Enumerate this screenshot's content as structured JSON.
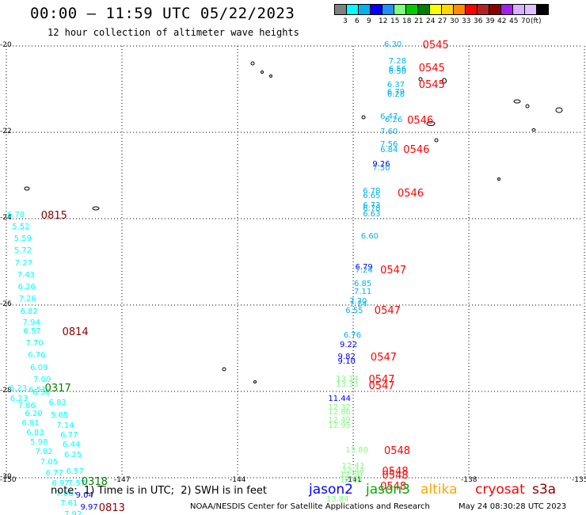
{
  "header": {
    "title": "00:00 – 11:59 UTC 05/22/2023",
    "subtitle": "12 hour collection of altimeter wave heights"
  },
  "color_scale": {
    "colors": [
      "#808080",
      "#00ffff",
      "#00b2ee",
      "#0000ff",
      "#1e90ff",
      "#7fff7f",
      "#00cd00",
      "#008000",
      "#ffff00",
      "#ffd700",
      "#ff8c00",
      "#ff0000",
      "#b22222",
      "#8b0000",
      "#a020f0",
      "#d8b0ff",
      "#e0c0ff",
      "#000000"
    ],
    "labels": [
      "3",
      "6",
      "9",
      "12",
      "15",
      "18",
      "21",
      "24",
      "27",
      "30",
      "33",
      "36",
      "39",
      "42",
      "45",
      "70",
      "(ft)"
    ]
  },
  "axes": {
    "lat_labels": [
      "-20",
      "-22",
      "-24",
      "-26",
      "-28",
      "-30"
    ],
    "lon_labels": [
      "-150",
      "-147",
      "-144",
      "-141",
      "-138",
      "-135"
    ]
  },
  "observations": [
    {
      "t": "6.30",
      "c": "#00b2ee",
      "lat": -19.98,
      "lon": -140.2
    },
    {
      "t": "7.28",
      "c": "#00b2ee",
      "lat": -20.37,
      "lon": -140.08
    },
    {
      "t": "6.56",
      "c": "#00b2ee",
      "lat": -20.55,
      "lon": -140.08
    },
    {
      "t": "6.50",
      "c": "#00b2ee",
      "lat": -20.6,
      "lon": -140.08
    },
    {
      "t": "6.37",
      "c": "#00b2ee",
      "lat": -20.92,
      "lon": -140.12
    },
    {
      "t": "6.79",
      "c": "#00b2ee",
      "lat": -21.08,
      "lon": -140.12
    },
    {
      "t": "6.28",
      "c": "#00b2ee",
      "lat": -21.13,
      "lon": -140.12
    },
    {
      "t": "6.47",
      "c": "#00b2ee",
      "lat": -21.65,
      "lon": -140.3
    },
    {
      "t": "6.26",
      "c": "#00b2ee",
      "lat": -21.73,
      "lon": -140.18
    },
    {
      "t": "7.60",
      "c": "#00b2ee",
      "lat": -22.0,
      "lon": -140.3
    },
    {
      "t": "7.56",
      "c": "#00b2ee",
      "lat": -22.3,
      "lon": -140.3
    },
    {
      "t": "6.84",
      "c": "#00b2ee",
      "lat": -22.42,
      "lon": -140.3
    },
    {
      "t": "9.26",
      "c": "#0000ff",
      "lat": -22.76,
      "lon": -140.5
    },
    {
      "t": "7.50",
      "c": "#00b2ee",
      "lat": -22.84,
      "lon": -140.5
    },
    {
      "t": "6.78",
      "c": "#00b2ee",
      "lat": -23.38,
      "lon": -140.75
    },
    {
      "t": "6.65",
      "c": "#00b2ee",
      "lat": -23.48,
      "lon": -140.75
    },
    {
      "t": "6.73",
      "c": "#00b2ee",
      "lat": -23.7,
      "lon": -140.75
    },
    {
      "t": "6.78",
      "c": "#00b2ee",
      "lat": -23.78,
      "lon": -140.75
    },
    {
      "t": "6.63",
      "c": "#00b2ee",
      "lat": -23.9,
      "lon": -140.75
    },
    {
      "t": "6.60",
      "c": "#00b2ee",
      "lat": -24.42,
      "lon": -140.8
    },
    {
      "t": "6.79",
      "c": "#0000ff",
      "lat": -25.14,
      "lon": -140.95
    },
    {
      "t": "7.24",
      "c": "#00b2ee",
      "lat": -25.22,
      "lon": -140.95
    },
    {
      "t": "6.85",
      "c": "#00b2ee",
      "lat": -25.52,
      "lon": -140.98
    },
    {
      "t": "7.11",
      "c": "#00b2ee",
      "lat": -25.7,
      "lon": -140.98
    },
    {
      "t": "7.30",
      "c": "#00b2ee",
      "lat": -25.92,
      "lon": -141.1
    },
    {
      "t": "7.14",
      "c": "#00b2ee",
      "lat": -26.0,
      "lon": -141.1
    },
    {
      "t": "6.55",
      "c": "#00b2ee",
      "lat": -26.15,
      "lon": -141.2
    },
    {
      "t": "6.76",
      "c": "#00b2ee",
      "lat": -26.72,
      "lon": -141.25
    },
    {
      "t": "9.22",
      "c": "#0000ff",
      "lat": -26.93,
      "lon": -141.35
    },
    {
      "t": "9.82",
      "c": "#0000ff",
      "lat": -27.22,
      "lon": -141.4
    },
    {
      "t": "9.10",
      "c": "#0000ff",
      "lat": -27.32,
      "lon": -141.4
    },
    {
      "t": "13.14",
      "c": "#7fff7f",
      "lat": -27.73,
      "lon": -141.45
    },
    {
      "t": "13.33",
      "c": "#7fff7f",
      "lat": -27.85,
      "lon": -141.45
    },
    {
      "t": "11.44",
      "c": "#0000ff",
      "lat": -28.18,
      "lon": -141.65
    },
    {
      "t": "12.32",
      "c": "#7fff7f",
      "lat": -28.38,
      "lon": -141.65
    },
    {
      "t": "12.86",
      "c": "#7fff7f",
      "lat": -28.5,
      "lon": -141.65
    },
    {
      "t": "12.49",
      "c": "#7fff7f",
      "lat": -28.68,
      "lon": -141.65
    },
    {
      "t": "12.95",
      "c": "#7fff7f",
      "lat": -28.8,
      "lon": -141.65
    },
    {
      "t": "13.80",
      "c": "#7fff7f",
      "lat": -29.38,
      "lon": -141.2
    },
    {
      "t": "12.43",
      "c": "#7fff7f",
      "lat": -29.75,
      "lon": -141.3
    },
    {
      "t": "12.44",
      "c": "#7fff7f",
      "lat": -29.85,
      "lon": -141.3
    },
    {
      "t": "12.50",
      "c": "#7fff7f",
      "lat": -29.95,
      "lon": -141.35
    },
    {
      "t": "12.08",
      "c": "#7fff7f",
      "lat": -30.07,
      "lon": -141.35
    },
    {
      "t": "13.84",
      "c": "#7fff7f",
      "lat": -30.52,
      "lon": -141.7
    },
    {
      "t": "6.78",
      "c": "#00ffff",
      "lat": -23.92,
      "lon": -149.98
    },
    {
      "t": "5.52",
      "c": "#00ffff",
      "lat": -24.2,
      "lon": -149.85
    },
    {
      "t": "5.59",
      "c": "#00ffff",
      "lat": -24.48,
      "lon": -149.8
    },
    {
      "t": "5.72",
      "c": "#00ffff",
      "lat": -24.76,
      "lon": -149.8
    },
    {
      "t": "7.27",
      "c": "#00ffff",
      "lat": -25.04,
      "lon": -149.78
    },
    {
      "t": "7.43",
      "c": "#00ffff",
      "lat": -25.32,
      "lon": -149.72
    },
    {
      "t": "6.26",
      "c": "#00ffff",
      "lat": -25.6,
      "lon": -149.7
    },
    {
      "t": "7.26",
      "c": "#00ffff",
      "lat": -25.88,
      "lon": -149.68
    },
    {
      "t": "6.82",
      "c": "#00ffff",
      "lat": -26.16,
      "lon": -149.64
    },
    {
      "t": "7.94",
      "c": "#00ffff",
      "lat": -26.42,
      "lon": -149.58
    },
    {
      "t": "6.57",
      "c": "#00ffff",
      "lat": -26.62,
      "lon": -149.56
    },
    {
      "t": "7.70",
      "c": "#00ffff",
      "lat": -26.9,
      "lon": -149.5
    },
    {
      "t": "6.76",
      "c": "#00ffff",
      "lat": -27.18,
      "lon": -149.44
    },
    {
      "t": "6.09",
      "c": "#00ffff",
      "lat": -27.46,
      "lon": -149.38
    },
    {
      "t": "7.00",
      "c": "#00ffff",
      "lat": -27.74,
      "lon": -149.3
    },
    {
      "t": "6.23",
      "c": "#00ffff",
      "lat": -27.94,
      "lon": -149.92
    },
    {
      "t": "6.51",
      "c": "#00ffff",
      "lat": -27.98,
      "lon": -149.42
    },
    {
      "t": "6.36",
      "c": "#00ffff",
      "lat": -28.04,
      "lon": -149.32
    },
    {
      "t": "6.23",
      "c": "#00ffff",
      "lat": -28.18,
      "lon": -149.9
    },
    {
      "t": "6.83",
      "c": "#00ffff",
      "lat": -28.28,
      "lon": -148.9
    },
    {
      "t": "7.86",
      "c": "#00ffff",
      "lat": -28.34,
      "lon": -149.7
    },
    {
      "t": "6.20",
      "c": "#00ffff",
      "lat": -28.54,
      "lon": -149.52
    },
    {
      "t": "5.65",
      "c": "#00ffff",
      "lat": -28.56,
      "lon": -148.85
    },
    {
      "t": "6.91",
      "c": "#00ffff",
      "lat": -28.76,
      "lon": -149.6
    },
    {
      "t": "7.14",
      "c": "#00ffff",
      "lat": -28.8,
      "lon": -148.7
    },
    {
      "t": "6.83",
      "c": "#00ffff",
      "lat": -28.98,
      "lon": -149.48
    },
    {
      "t": "6.77",
      "c": "#00ffff",
      "lat": -29.02,
      "lon": -148.6
    },
    {
      "t": "5.98",
      "c": "#00ffff",
      "lat": -29.2,
      "lon": -149.38
    },
    {
      "t": "6.44",
      "c": "#00ffff",
      "lat": -29.24,
      "lon": -148.54
    },
    {
      "t": "7.82",
      "c": "#00ffff",
      "lat": -29.42,
      "lon": -149.25
    },
    {
      "t": "6.25",
      "c": "#00ffff",
      "lat": -29.48,
      "lon": -148.5
    },
    {
      "t": "7.05",
      "c": "#00ffff",
      "lat": -29.66,
      "lon": -149.12
    },
    {
      "t": "6.77",
      "c": "#00ffff",
      "lat": -29.9,
      "lon": -148.98
    },
    {
      "t": "6.57",
      "c": "#00ffff",
      "lat": -29.88,
      "lon": -148.45
    },
    {
      "t": "6.97",
      "c": "#00ffff",
      "lat": -30.14,
      "lon": -148.82
    },
    {
      "t": "7.57",
      "c": "#00ffff",
      "lat": -30.14,
      "lon": -148.4
    },
    {
      "t": "7.06",
      "c": "#00ffff",
      "lat": -30.38,
      "lon": -148.72
    },
    {
      "t": "9.04",
      "c": "#0000ff",
      "lat": -30.42,
      "lon": -148.2
    },
    {
      "t": "7.61",
      "c": "#00ffff",
      "lat": -30.6,
      "lon": -148.6
    },
    {
      "t": "9.97",
      "c": "#0000ff",
      "lat": -30.7,
      "lon": -148.08
    },
    {
      "t": "7.92",
      "c": "#00ffff",
      "lat": -30.86,
      "lon": -148.5
    }
  ],
  "pass_times": [
    {
      "t": "0545",
      "c": "#ff0000",
      "lat": -19.98,
      "lon": -139.2
    },
    {
      "t": "0545",
      "c": "#ff0000",
      "lat": -20.52,
      "lon": -139.3
    },
    {
      "t": "0545",
      "c": "#ff0000",
      "lat": -20.9,
      "lon": -139.3
    },
    {
      "t": "0546",
      "c": "#ff0000",
      "lat": -21.72,
      "lon": -139.6
    },
    {
      "t": "0546",
      "c": "#ff0000",
      "lat": -22.4,
      "lon": -139.7
    },
    {
      "t": "0546",
      "c": "#ff0000",
      "lat": -23.42,
      "lon": -139.85
    },
    {
      "t": "0547",
      "c": "#ff0000",
      "lat": -25.2,
      "lon": -140.3
    },
    {
      "t": "0547",
      "c": "#ff0000",
      "lat": -26.12,
      "lon": -140.45
    },
    {
      "t": "0547",
      "c": "#ff0000",
      "lat": -27.22,
      "lon": -140.55
    },
    {
      "t": "0547",
      "c": "#ff0000",
      "lat": -27.72,
      "lon": -140.6
    },
    {
      "t": "0547",
      "c": "#ff0000",
      "lat": -27.88,
      "lon": -140.6
    },
    {
      "t": "0548",
      "c": "#ff0000",
      "lat": -29.38,
      "lon": -140.2
    },
    {
      "t": "0548",
      "c": "#ff0000",
      "lat": -29.85,
      "lon": -140.25
    },
    {
      "t": "0548",
      "c": "#ff0000",
      "lat": -29.95,
      "lon": -140.25
    },
    {
      "t": "0548",
      "c": "#ff0000",
      "lat": -30.2,
      "lon": -140.3
    },
    {
      "t": "0815",
      "c": "#8b0000",
      "lat": -23.92,
      "lon": -149.1
    },
    {
      "t": "0814",
      "c": "#8b0000",
      "lat": -26.62,
      "lon": -148.55
    },
    {
      "t": "0317",
      "c": "#008000",
      "lat": -27.92,
      "lon": -149.0
    },
    {
      "t": "0318",
      "c": "#008000",
      "lat": -30.1,
      "lon": -148.05
    },
    {
      "t": "0813",
      "c": "#8b0000",
      "lat": -30.7,
      "lon": -147.6
    }
  ],
  "footer": {
    "note": "note:  1) Time is in UTC;  2) SWH is in feet",
    "satellites": [
      {
        "name": "jason2",
        "color": "#0000ff"
      },
      {
        "name": "jason3",
        "color": "#00aa00"
      },
      {
        "name": "altika",
        "color": "#ffa500"
      },
      {
        "name": "cryosat",
        "color": "#ff0000"
      },
      {
        "name": "s3a",
        "color": "#8b0000"
      }
    ],
    "credit": "NOAA/NESDIS Center for Satellite Applications and Research",
    "timestamp": "May 24 08:30:28 UTC 2023"
  }
}
